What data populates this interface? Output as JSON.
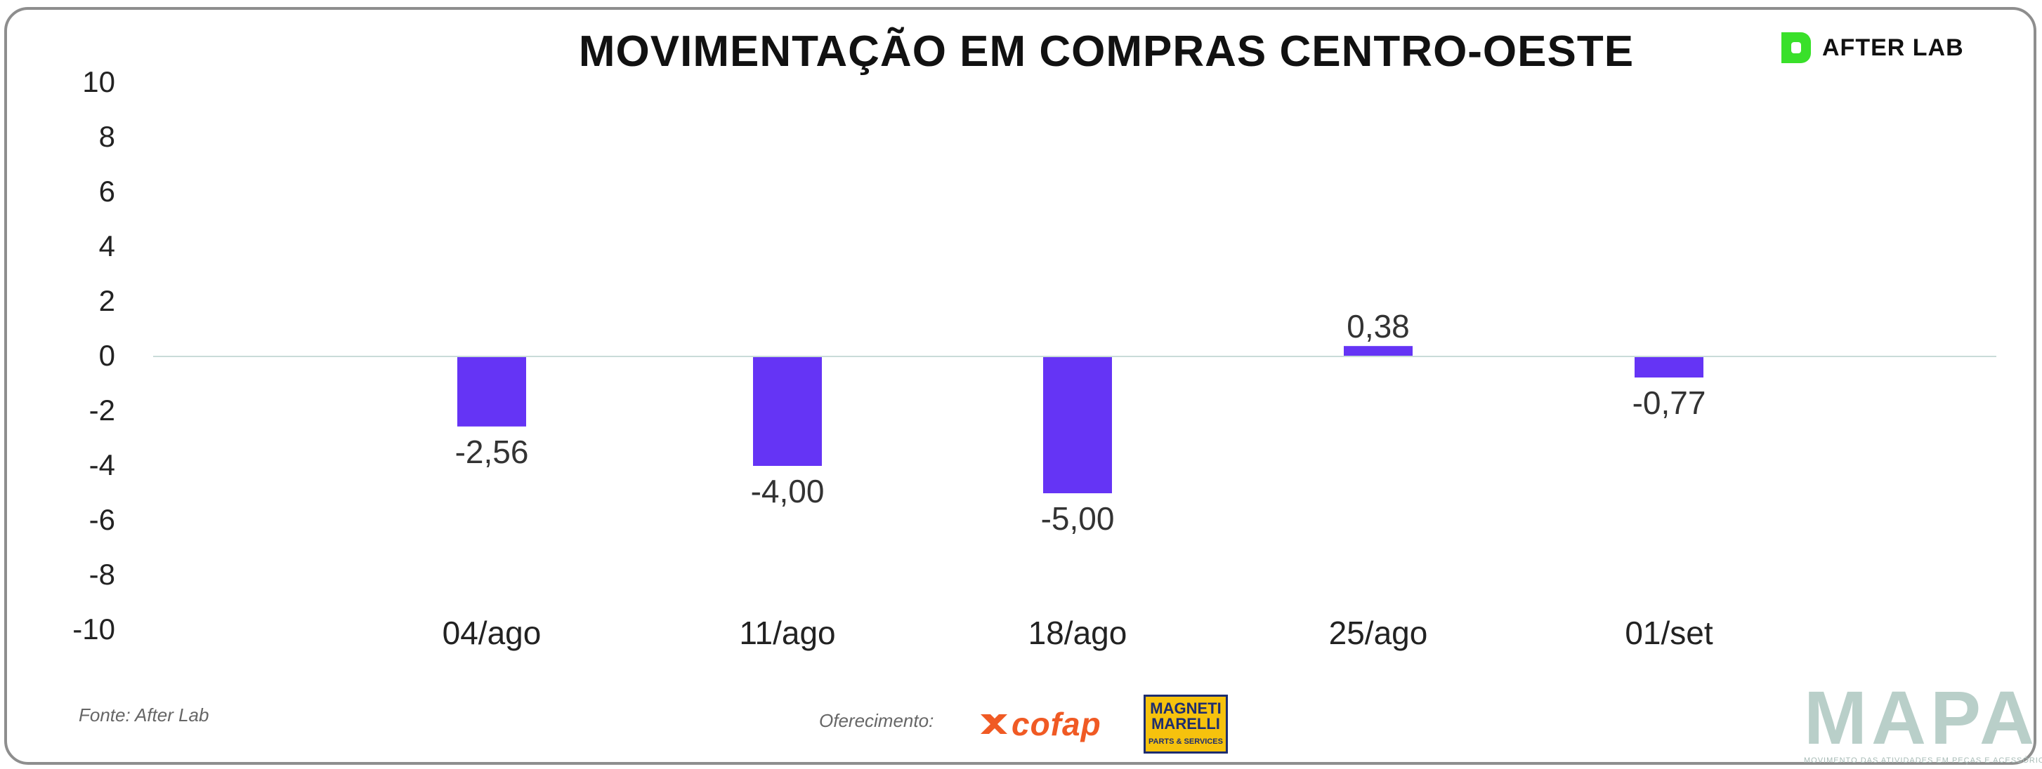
{
  "title": "MOVIMENTAÇÃO EM COMPRAS CENTRO-OESTE",
  "brand": {
    "afterlab": "AFTER LAB",
    "cofap": "cofap",
    "magneti_top": "MAGNETI MARELLI",
    "magneti_bottom": "PARTS & SERVICES",
    "mapa": "MAPA",
    "mapa_tagline": "MOVIMENTO DAS ATIVIDADES EM PEÇAS E ACESSÓRIOS"
  },
  "footer": {
    "source": "Fonte: After Lab",
    "offer": "Oferecimento:"
  },
  "colors": {
    "bar": "#6534f5",
    "afterlab_green": "#39e02a",
    "cofap_orange": "#f05a24",
    "magneti_yellow": "#f6c20d",
    "mapa": "#b9cfc9",
    "zero_line": "#c9dbd8"
  },
  "chart_data": {
    "type": "bar",
    "title": "MOVIMENTAÇÃO EM COMPRAS CENTRO-OESTE",
    "xlabel": "",
    "ylabel": "",
    "categories": [
      "04/ago",
      "11/ago",
      "18/ago",
      "25/ago",
      "01/set"
    ],
    "values": [
      -2.56,
      -4.0,
      -5.0,
      0.38,
      -0.77
    ],
    "value_labels": [
      "-2,56",
      "-4,00",
      "-5,00",
      "0,38",
      "-0,77"
    ],
    "ylim": [
      -10,
      10
    ],
    "yticks": [
      10,
      8,
      6,
      4,
      2,
      0,
      -2,
      -4,
      -6,
      -8,
      -10
    ],
    "grid": false,
    "legend": "none"
  }
}
